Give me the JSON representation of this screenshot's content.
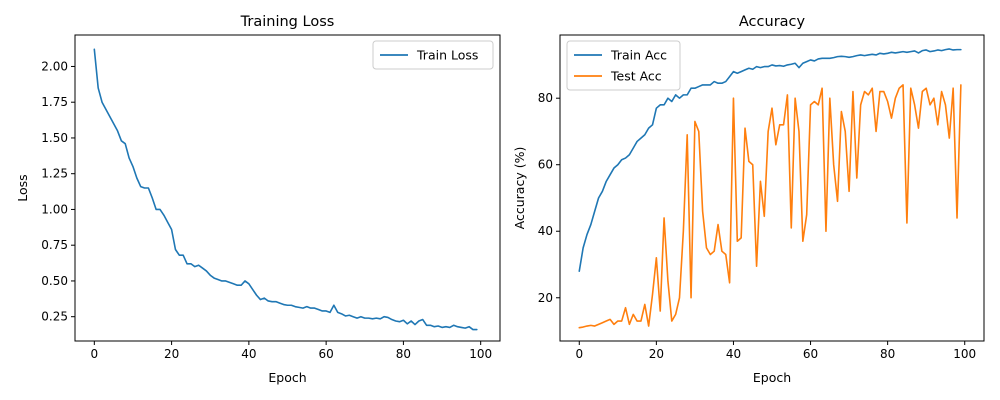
{
  "chart_data": [
    {
      "type": "line",
      "title": "Training Loss",
      "xlabel": "Epoch",
      "ylabel": "Loss",
      "xlim": [
        -5,
        105
      ],
      "ylim": [
        0.08,
        2.22
      ],
      "xticks": [
        0,
        20,
        40,
        60,
        80,
        100
      ],
      "xtick_labels": [
        "0",
        "20",
        "40",
        "60",
        "80",
        "100"
      ],
      "yticks": [
        0.25,
        0.5,
        0.75,
        1.0,
        1.25,
        1.5,
        1.75,
        2.0
      ],
      "ytick_labels": [
        "0.25",
        "0.50",
        "0.75",
        "1.00",
        "1.25",
        "1.50",
        "1.75",
        "2.00"
      ],
      "grid": false,
      "legend_position": "top-right",
      "x": [
        0,
        1,
        2,
        3,
        4,
        5,
        6,
        7,
        8,
        9,
        10,
        11,
        12,
        13,
        14,
        15,
        16,
        17,
        18,
        19,
        20,
        21,
        22,
        23,
        24,
        25,
        26,
        27,
        28,
        29,
        30,
        31,
        32,
        33,
        34,
        35,
        36,
        37,
        38,
        39,
        40,
        41,
        42,
        43,
        44,
        45,
        46,
        47,
        48,
        49,
        50,
        51,
        52,
        53,
        54,
        55,
        56,
        57,
        58,
        59,
        60,
        61,
        62,
        63,
        64,
        65,
        66,
        67,
        68,
        69,
        70,
        71,
        72,
        73,
        74,
        75,
        76,
        77,
        78,
        79,
        80,
        81,
        82,
        83,
        84,
        85,
        86,
        87,
        88,
        89,
        90,
        91,
        92,
        93,
        94,
        95,
        96,
        97,
        98,
        99
      ],
      "series": [
        {
          "name": "Train Loss",
          "color": "#1f77b4",
          "values": [
            2.12,
            1.85,
            1.75,
            1.7,
            1.65,
            1.6,
            1.55,
            1.48,
            1.46,
            1.36,
            1.3,
            1.22,
            1.16,
            1.15,
            1.15,
            1.08,
            1.0,
            1.0,
            0.96,
            0.91,
            0.86,
            0.72,
            0.68,
            0.68,
            0.62,
            0.62,
            0.6,
            0.61,
            0.59,
            0.57,
            0.54,
            0.52,
            0.51,
            0.5,
            0.5,
            0.49,
            0.48,
            0.47,
            0.47,
            0.5,
            0.48,
            0.44,
            0.4,
            0.37,
            0.38,
            0.36,
            0.355,
            0.355,
            0.345,
            0.335,
            0.33,
            0.33,
            0.32,
            0.315,
            0.31,
            0.32,
            0.31,
            0.31,
            0.3,
            0.29,
            0.29,
            0.28,
            0.33,
            0.28,
            0.27,
            0.255,
            0.26,
            0.25,
            0.24,
            0.25,
            0.24,
            0.24,
            0.235,
            0.24,
            0.235,
            0.25,
            0.245,
            0.23,
            0.22,
            0.215,
            0.225,
            0.2,
            0.22,
            0.195,
            0.22,
            0.23,
            0.19,
            0.19,
            0.18,
            0.185,
            0.175,
            0.18,
            0.175,
            0.19,
            0.18,
            0.175,
            0.17,
            0.18,
            0.16,
            0.16
          ]
        }
      ]
    },
    {
      "type": "line",
      "title": "Accuracy",
      "xlabel": "Epoch",
      "ylabel": "Accuracy (%)",
      "xlim": [
        -5,
        105
      ],
      "ylim": [
        7,
        99
      ],
      "xticks": [
        0,
        20,
        40,
        60,
        80,
        100
      ],
      "xtick_labels": [
        "0",
        "20",
        "40",
        "60",
        "80",
        "100"
      ],
      "yticks": [
        20,
        40,
        60,
        80
      ],
      "ytick_labels": [
        "20",
        "40",
        "60",
        "80"
      ],
      "grid": false,
      "legend_position": "top-left",
      "x": [
        0,
        1,
        2,
        3,
        4,
        5,
        6,
        7,
        8,
        9,
        10,
        11,
        12,
        13,
        14,
        15,
        16,
        17,
        18,
        19,
        20,
        21,
        22,
        23,
        24,
        25,
        26,
        27,
        28,
        29,
        30,
        31,
        32,
        33,
        34,
        35,
        36,
        37,
        38,
        39,
        40,
        41,
        42,
        43,
        44,
        45,
        46,
        47,
        48,
        49,
        50,
        51,
        52,
        53,
        54,
        55,
        56,
        57,
        58,
        59,
        60,
        61,
        62,
        63,
        64,
        65,
        66,
        67,
        68,
        69,
        70,
        71,
        72,
        73,
        74,
        75,
        76,
        77,
        78,
        79,
        80,
        81,
        82,
        83,
        84,
        85,
        86,
        87,
        88,
        89,
        90,
        91,
        92,
        93,
        94,
        95,
        96,
        97,
        98,
        99
      ],
      "series": [
        {
          "name": "Train Acc",
          "color": "#1f77b4",
          "values": [
            28,
            35,
            39,
            42,
            46,
            50,
            52,
            55,
            57,
            59,
            60,
            61.5,
            62,
            63,
            65,
            67,
            68,
            69,
            71,
            72,
            77,
            78,
            78,
            80,
            79,
            81,
            80,
            81,
            81,
            83,
            83,
            83.5,
            84,
            84,
            84,
            85,
            84.5,
            84.5,
            85,
            86.5,
            88,
            87.5,
            88,
            88.5,
            89,
            88.7,
            89.5,
            89.2,
            89.5,
            89.5,
            90,
            89.7,
            89.8,
            89.6,
            90,
            90.2,
            90.5,
            89.2,
            90.5,
            91,
            91.5,
            91.2,
            91.8,
            92,
            92,
            92,
            92.2,
            92.5,
            92.6,
            92.5,
            92.3,
            92.5,
            92.8,
            93,
            92.8,
            93,
            93.2,
            93,
            93.5,
            93.3,
            93.5,
            93.8,
            93.6,
            93.8,
            94,
            93.8,
            94,
            94.2,
            93.6,
            94.3,
            94.5,
            94,
            94.2,
            94.5,
            94.3,
            94.6,
            94.8,
            94.5,
            94.6,
            94.6
          ]
        },
        {
          "name": "Test Acc",
          "color": "#ff7f0e",
          "values": [
            11,
            11.2,
            11.5,
            11.7,
            11.5,
            12,
            12.5,
            13,
            13.5,
            12,
            13,
            13,
            17,
            12,
            15,
            13,
            13,
            18,
            11.5,
            21,
            32,
            16,
            44,
            25,
            13,
            15,
            20,
            40,
            69,
            20,
            73,
            70,
            46,
            35,
            33,
            34,
            42,
            34,
            33,
            24.5,
            80,
            37,
            38,
            71,
            61,
            60,
            29.5,
            55,
            44.5,
            70,
            77,
            66,
            72,
            72,
            81,
            41,
            80,
            70,
            37,
            45,
            78,
            79,
            78,
            83,
            40,
            80,
            60,
            49,
            76,
            70,
            52,
            82,
            56,
            78,
            82,
            81,
            83,
            70,
            82,
            82,
            79,
            74,
            80,
            83,
            84,
            42.5,
            83,
            78,
            71,
            82,
            83,
            78,
            80,
            72,
            82,
            78,
            68,
            83,
            44,
            84
          ]
        }
      ]
    }
  ]
}
